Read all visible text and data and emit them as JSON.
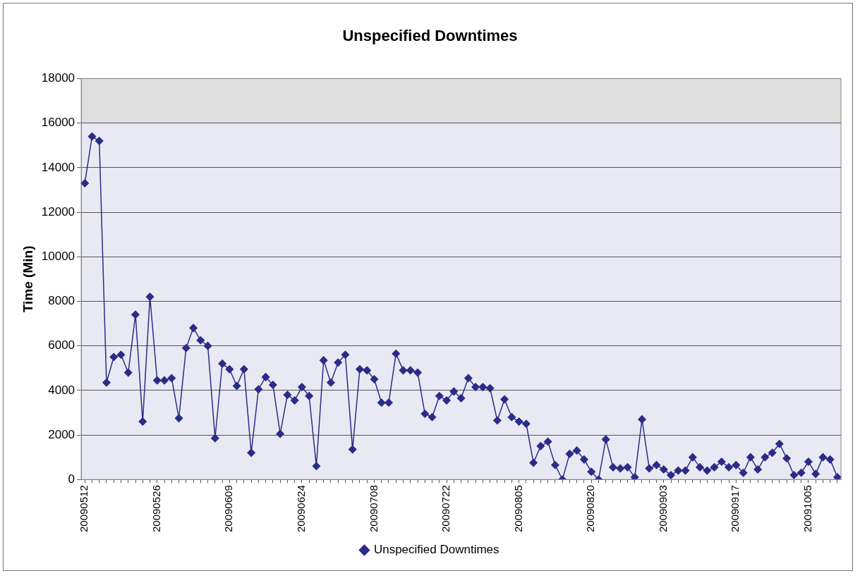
{
  "chart_data": {
    "type": "line",
    "title": "Unspecified Downtimes",
    "ylabel": "Time (Min)",
    "categories": [
      "20090512",
      null,
      null,
      null,
      null,
      null,
      null,
      null,
      null,
      null,
      "20090526",
      null,
      null,
      null,
      null,
      null,
      null,
      null,
      null,
      null,
      "20090609",
      null,
      null,
      null,
      null,
      null,
      null,
      null,
      null,
      null,
      "20090624",
      null,
      null,
      null,
      null,
      null,
      null,
      null,
      null,
      null,
      "20090708",
      null,
      null,
      null,
      null,
      null,
      null,
      null,
      null,
      null,
      "20090722",
      null,
      null,
      null,
      null,
      null,
      null,
      null,
      null,
      null,
      "20090805",
      null,
      null,
      null,
      null,
      null,
      null,
      null,
      null,
      null,
      "20090820",
      null,
      null,
      null,
      null,
      null,
      null,
      null,
      null,
      null,
      "20090903",
      null,
      null,
      null,
      null,
      null,
      null,
      null,
      null,
      null,
      "20090917",
      null,
      null,
      null,
      null,
      null,
      null,
      null,
      null,
      null,
      "20091005",
      null,
      null,
      null,
      null
    ],
    "series": [
      {
        "name": "Unspecified Downtimes",
        "color": "#2b2b88",
        "values": [
          13300,
          15400,
          15200,
          4350,
          5500,
          5600,
          4800,
          7400,
          2600,
          8200,
          4450,
          4450,
          4550,
          2750,
          5900,
          6800,
          6250,
          6000,
          1850,
          5200,
          4950,
          4200,
          4950,
          1200,
          4050,
          4600,
          4250,
          2050,
          3800,
          3550,
          4150,
          3750,
          600,
          5350,
          4350,
          5250,
          5600,
          1350,
          4950,
          4900,
          4500,
          3450,
          3450,
          5650,
          4900,
          4900,
          4800,
          2950,
          2800,
          3750,
          3550,
          3950,
          3650,
          4550,
          4150,
          4150,
          4100,
          2650,
          3600,
          2800,
          2600,
          2500,
          750,
          1500,
          1700,
          650,
          0,
          1150,
          1300,
          900,
          350,
          0,
          1800,
          550,
          500,
          550,
          100,
          2700,
          500,
          650,
          450,
          200,
          400,
          400,
          1000,
          550,
          400,
          550,
          800,
          550,
          650,
          300,
          1000,
          450,
          1000,
          1200,
          1600,
          950,
          200,
          300,
          800,
          250,
          1000,
          900,
          100
        ]
      }
    ],
    "ylim": [
      0,
      18000
    ],
    "yticks": [
      0,
      2000,
      4000,
      6000,
      8000,
      10000,
      12000,
      14000,
      16000,
      18000
    ],
    "bands": [
      {
        "axis": "y",
        "from": 16000,
        "to": 18000,
        "color": "#dedede"
      }
    ],
    "grid": "y",
    "legend": "bottom",
    "marker": "diamond",
    "line_style": "solid"
  }
}
